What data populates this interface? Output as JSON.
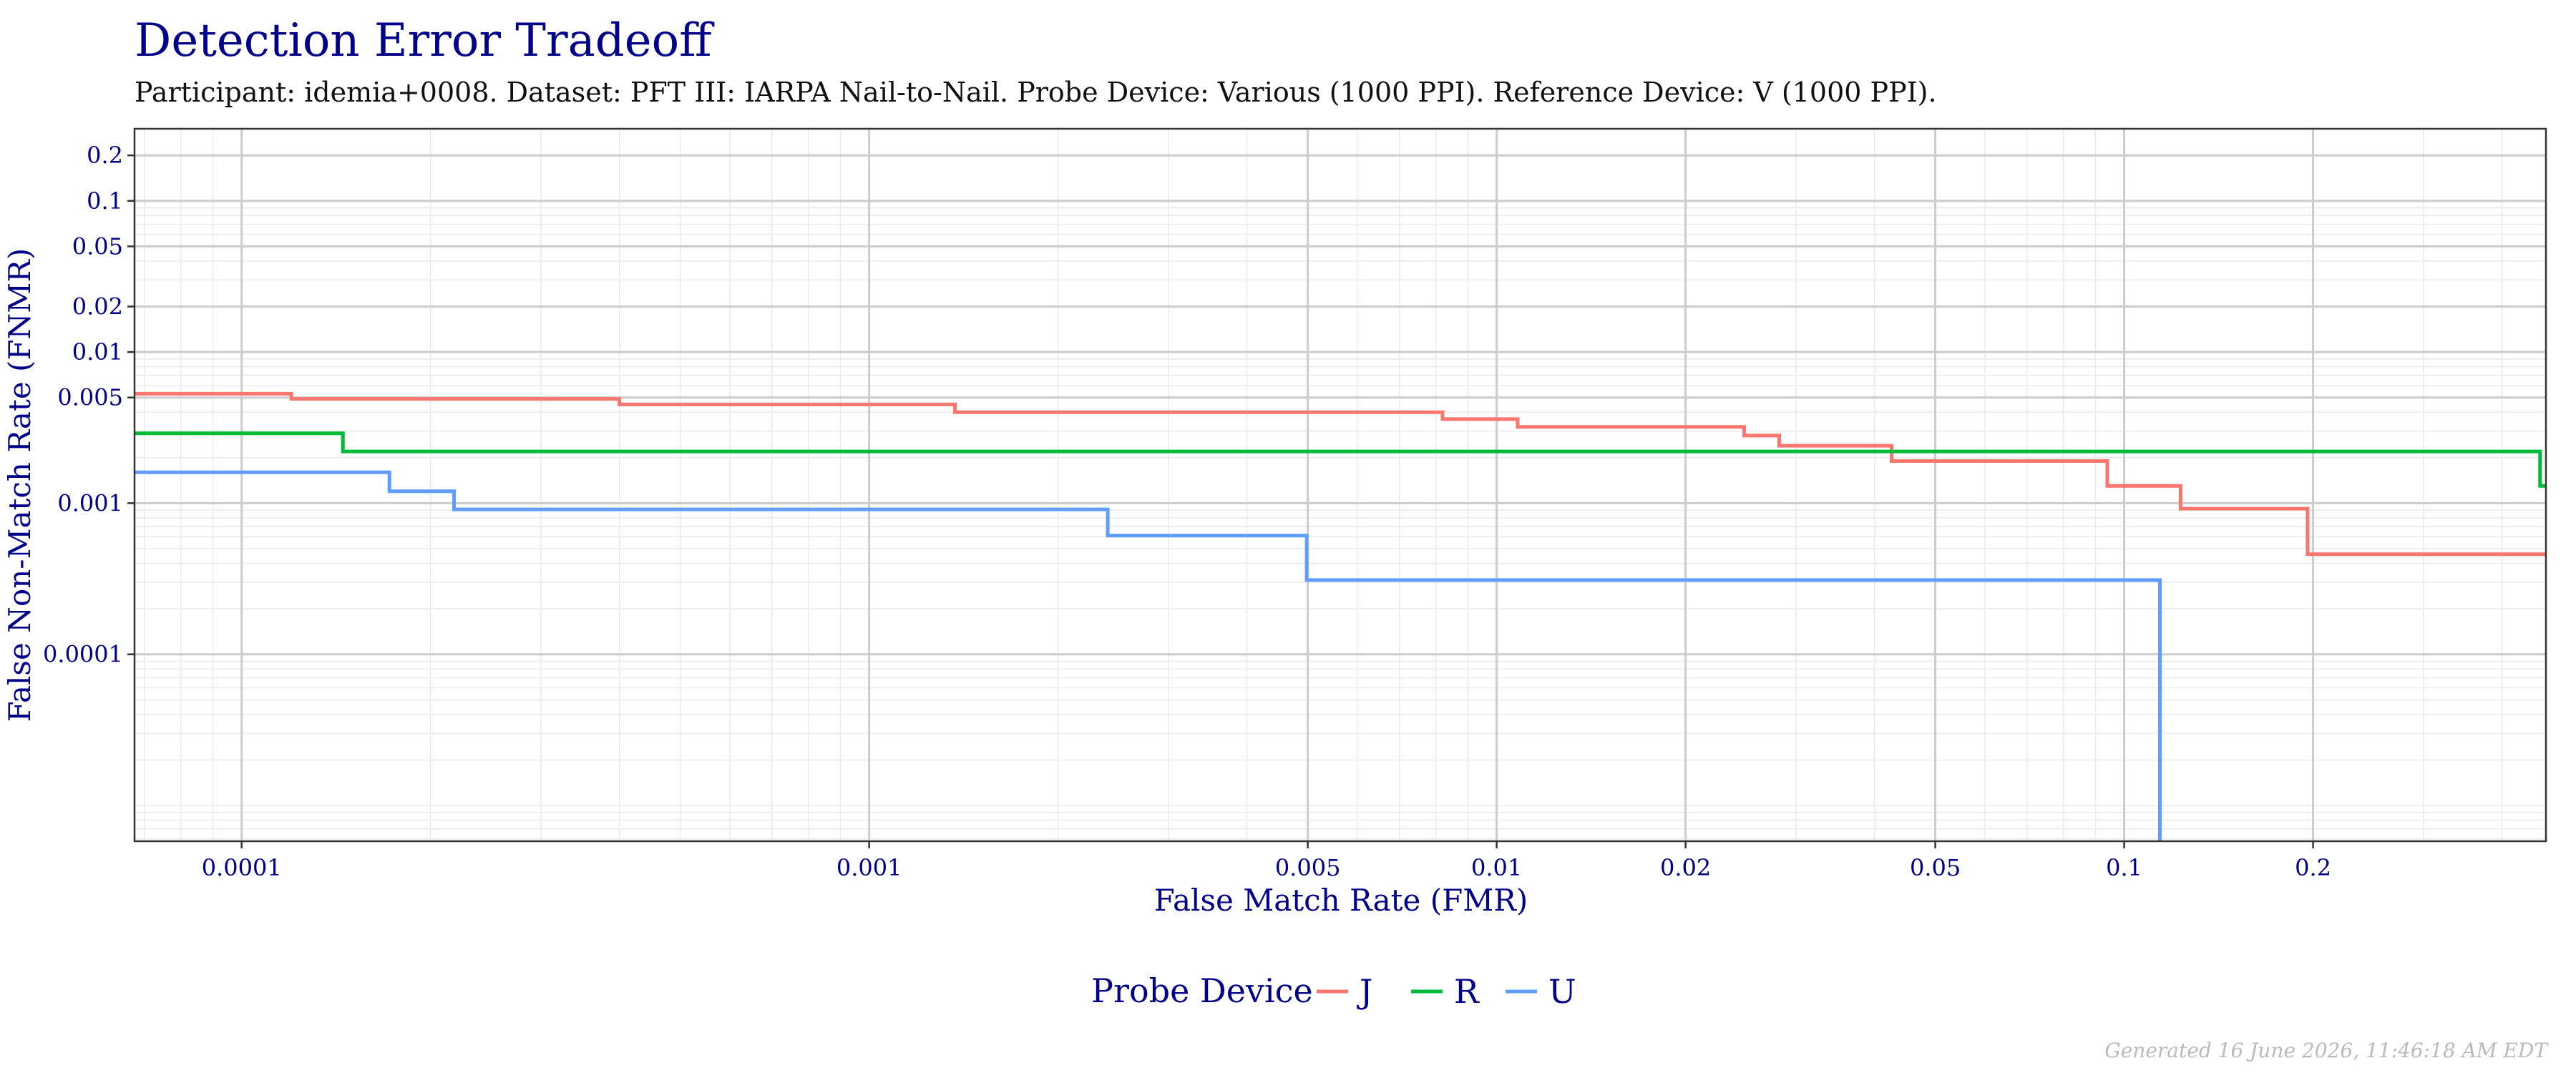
{
  "chart_data": {
    "type": "line",
    "title": "Detection Error Tradeoff",
    "subtitle": "Participant: idemia+0008. Dataset: PFT III: IARPA Nail-to-Nail. Probe Device: Various (1000 PPI). Reference Device: V (1000 PPI).",
    "xlabel": "False Match Rate (FMR)",
    "ylabel": "False Non-Match Rate (FNMR)",
    "x_scale": "log",
    "y_scale": "log",
    "xlim": [
      6.75e-05,
      0.47
    ],
    "ylim": [
      5.8e-06,
      0.3
    ],
    "x_ticks": [
      {
        "value": 0.0001,
        "label": "0.0001"
      },
      {
        "value": 0.001,
        "label": "0.001"
      },
      {
        "value": 0.005,
        "label": "0.005"
      },
      {
        "value": 0.01,
        "label": "0.01"
      },
      {
        "value": 0.02,
        "label": "0.02"
      },
      {
        "value": 0.05,
        "label": "0.05"
      },
      {
        "value": 0.1,
        "label": "0.1"
      },
      {
        "value": 0.2,
        "label": "0.2"
      }
    ],
    "y_ticks": [
      {
        "value": 0.2,
        "label": "0.2"
      },
      {
        "value": 0.1,
        "label": "0.1"
      },
      {
        "value": 0.05,
        "label": "0.05"
      },
      {
        "value": 0.02,
        "label": "0.02"
      },
      {
        "value": 0.01,
        "label": "0.01"
      },
      {
        "value": 0.005,
        "label": "0.005"
      },
      {
        "value": 0.001,
        "label": "0.001"
      },
      {
        "value": 0.0001,
        "label": "0.0001"
      }
    ],
    "grid": true,
    "legend": {
      "title": "Probe Device",
      "position": "bottom"
    },
    "series": [
      {
        "name": "J",
        "color": "#F8766D",
        "points": [
          [
            6.75e-05,
            0.0053
          ],
          [
            0.00012,
            0.0053
          ],
          [
            0.00012,
            0.0049
          ],
          [
            0.0004,
            0.0049
          ],
          [
            0.0004,
            0.0045
          ],
          [
            0.00137,
            0.0045
          ],
          [
            0.00137,
            0.004
          ],
          [
            0.0082,
            0.004
          ],
          [
            0.0082,
            0.0036
          ],
          [
            0.0108,
            0.0036
          ],
          [
            0.0108,
            0.0032
          ],
          [
            0.0248,
            0.0032
          ],
          [
            0.0248,
            0.0028
          ],
          [
            0.0282,
            0.0028
          ],
          [
            0.0282,
            0.0024
          ],
          [
            0.0426,
            0.0024
          ],
          [
            0.0426,
            0.0019
          ],
          [
            0.094,
            0.0019
          ],
          [
            0.094,
            0.0013
          ],
          [
            0.123,
            0.0013
          ],
          [
            0.123,
            0.00092
          ],
          [
            0.196,
            0.00092
          ],
          [
            0.196,
            0.00046
          ],
          [
            0.47,
            0.00046
          ]
        ]
      },
      {
        "name": "R",
        "color": "#00BA38",
        "points": [
          [
            6.75e-05,
            0.0029
          ],
          [
            0.000145,
            0.0029
          ],
          [
            0.000145,
            0.0022
          ],
          [
            0.46,
            0.0022
          ],
          [
            0.46,
            0.0013
          ],
          [
            0.47,
            0.0013
          ]
        ]
      },
      {
        "name": "U",
        "color": "#619CFF",
        "points": [
          [
            6.75e-05,
            0.0016
          ],
          [
            0.000172,
            0.0016
          ],
          [
            0.000172,
            0.0012
          ],
          [
            0.000218,
            0.0012
          ],
          [
            0.000218,
            0.00091
          ],
          [
            0.0024,
            0.00091
          ],
          [
            0.0024,
            0.00061
          ],
          [
            0.00498,
            0.00061
          ],
          [
            0.00498,
            0.00031
          ],
          [
            0.114,
            0.00031
          ],
          [
            0.114,
            5.8e-06
          ]
        ]
      }
    ]
  },
  "footer": {
    "generated": "Generated 16 June 2026, 11:46:18 AM EDT"
  }
}
